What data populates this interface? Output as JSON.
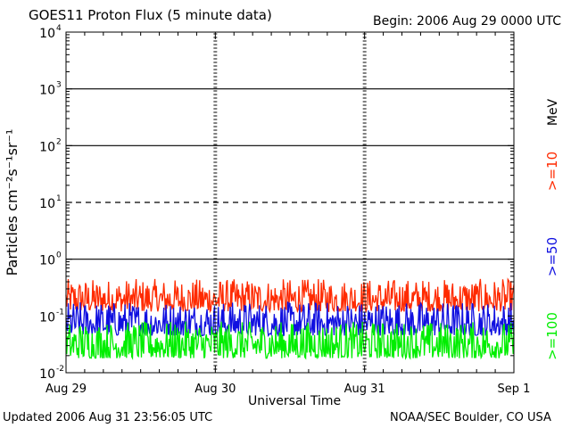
{
  "header": {
    "title": "GOES11 Proton Flux (5 minute data)",
    "begin": "Begin: 2006 Aug 29 0000 UTC"
  },
  "footer": {
    "updated": "Updated 2006 Aug 31 23:56:05 UTC",
    "source": "NOAA/SEC Boulder, CO USA"
  },
  "chart_data": {
    "type": "line",
    "title": "GOES11 Proton Flux (5 minute data)",
    "xlabel": "Universal Time",
    "ylabel": "Particles cm⁻²s⁻¹sr⁻¹",
    "yscale": "log",
    "ylim": [
      0.01,
      10000
    ],
    "xlim": [
      "2006-08-29 00:00",
      "2006-09-01 00:00"
    ],
    "x_ticks": [
      "Aug 29",
      "Aug 30",
      "Aug 31",
      "Sep 1"
    ],
    "y_ticks": [
      {
        "base": "10",
        "exp": "-2"
      },
      {
        "base": "10",
        "exp": "-1"
      },
      {
        "base": "10",
        "exp": "0"
      },
      {
        "base": "10",
        "exp": "1"
      },
      {
        "base": "10",
        "exp": "2"
      },
      {
        "base": "10",
        "exp": "3"
      },
      {
        "base": "10",
        "exp": "4"
      }
    ],
    "unit_label": "MeV",
    "series": [
      {
        "name": ">=10",
        "color": "#ff2a00",
        "typical_low": 0.12,
        "typical_high": 0.45
      },
      {
        "name": ">=50",
        "color": "#1010e0",
        "typical_low": 0.045,
        "typical_high": 0.18
      },
      {
        "name": ">=100",
        "color": "#00ee00",
        "typical_low": 0.018,
        "typical_high": 0.08
      }
    ],
    "reference_lines": [
      {
        "value": 1,
        "style": "solid"
      },
      {
        "value": 10,
        "style": "dashed"
      },
      {
        "value": 100,
        "style": "solid"
      },
      {
        "value": 1000,
        "style": "solid"
      }
    ],
    "grid": false,
    "legend": "right"
  }
}
